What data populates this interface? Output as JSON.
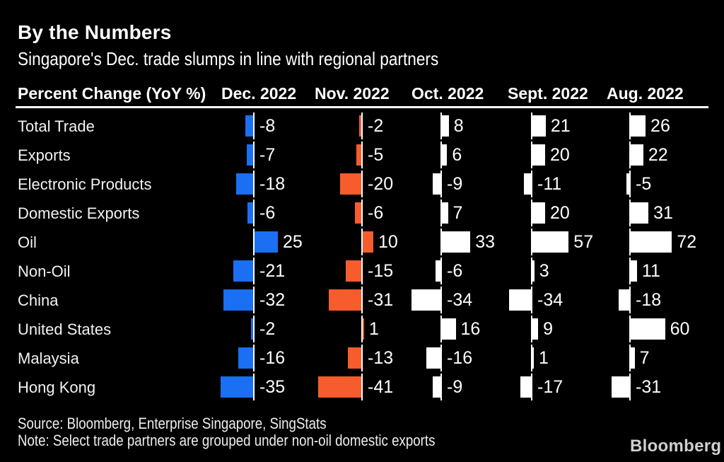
{
  "header": {
    "title": "By the Numbers",
    "subtitle": "Singapore's Dec. trade slumps in line with regional partners"
  },
  "table": {
    "metric_label": "Percent Change (YoY %)",
    "columns": [
      "Dec. 2022",
      "Nov. 2022",
      "Oct. 2022",
      "Sept. 2022",
      "Aug. 2022"
    ]
  },
  "chart_data": {
    "type": "bar",
    "orientation": "horizontal",
    "title": "By the Numbers",
    "subtitle": "Singapore's Dec. trade slumps in line with regional partners",
    "xlabel": "Percent Change (YoY %)",
    "value_labels": true,
    "grid": false,
    "categories": [
      "Total Trade",
      "Exports",
      "Electronic Products",
      "Domestic Exports",
      "Oil",
      "Non-Oil",
      "China",
      "United States",
      "Malaysia",
      "Hong Kong"
    ],
    "series": [
      {
        "name": "Dec. 2022",
        "color": "#1a6ff2",
        "values": [
          -8,
          -7,
          -18,
          -6,
          25,
          -21,
          -32,
          -2,
          -16,
          -35
        ]
      },
      {
        "name": "Nov. 2022",
        "color": "#f75c2c",
        "values": [
          -2,
          -5,
          -20,
          -6,
          10,
          -15,
          -31,
          1,
          -13,
          -41
        ]
      },
      {
        "name": "Oct. 2022",
        "color": "#ffffff",
        "values": [
          8,
          6,
          -9,
          7,
          33,
          -6,
          -34,
          16,
          -16,
          -9
        ]
      },
      {
        "name": "Sept. 2022",
        "color": "#ffffff",
        "values": [
          21,
          20,
          -11,
          20,
          57,
          3,
          -34,
          9,
          1,
          -17
        ]
      },
      {
        "name": "Aug. 2022",
        "color": "#ffffff",
        "values": [
          26,
          22,
          -5,
          31,
          72,
          11,
          -18,
          60,
          7,
          -31
        ]
      }
    ],
    "colors": {
      "background": "#000000",
      "text": "#ffffff",
      "baseline": "#ffffff"
    }
  },
  "footer": {
    "source": "Source: Bloomberg, Enterprise Singapore, SingStats",
    "note": "Note: Select trade partners are grouped under non-oil domestic exports",
    "brand": "Bloomberg"
  }
}
